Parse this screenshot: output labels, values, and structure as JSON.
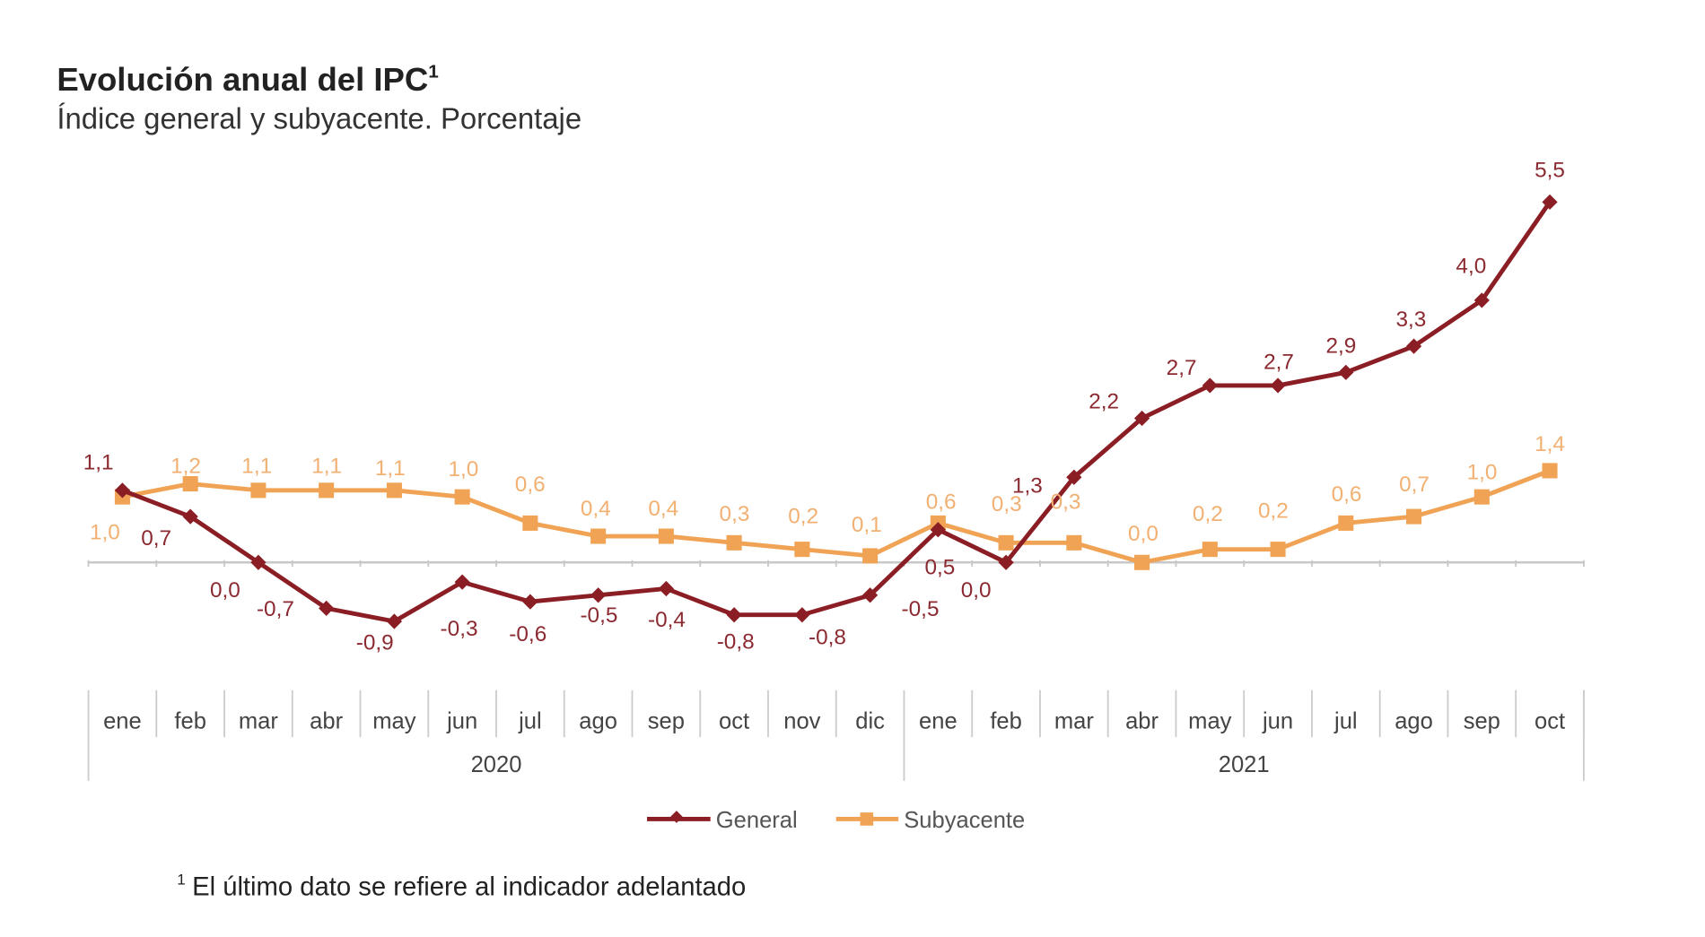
{
  "chart_data": {
    "type": "line",
    "title": "Evolución anual del IPC",
    "title_superscript": "1",
    "subtitle": "Índice general y subyacente. Porcentaje",
    "footnote_mark": "1",
    "footnote": "El último dato se refiere al indicador adelantado",
    "years": [
      {
        "label": "2020",
        "months": 12
      },
      {
        "label": "2021",
        "months": 10
      }
    ],
    "categories": [
      "ene",
      "feb",
      "mar",
      "abr",
      "may",
      "jun",
      "jul",
      "ago",
      "sep",
      "oct",
      "nov",
      "dic",
      "ene",
      "feb",
      "mar",
      "abr",
      "may",
      "jun",
      "jul",
      "ago",
      "sep",
      "oct"
    ],
    "series": [
      {
        "name": "General",
        "color": "#8b1e24",
        "marker": "diamond",
        "values": [
          1.1,
          0.7,
          0.0,
          -0.7,
          -0.9,
          -0.3,
          -0.6,
          -0.5,
          -0.4,
          -0.8,
          -0.8,
          -0.5,
          0.5,
          0.0,
          1.3,
          2.2,
          2.7,
          2.7,
          2.9,
          3.3,
          4.0,
          5.5
        ],
        "labels": [
          "1,1",
          "0,7",
          "0,0",
          "-0,7",
          "-0,9",
          "-0,3",
          "-0,6",
          "-0,5",
          "-0,4",
          "-0,8",
          "-0,8",
          "-0,5",
          "0,5",
          "0,0",
          "1,3",
          "2,2",
          "2,7",
          "2,7",
          "2,9",
          "3,3",
          "4,0",
          "5,5"
        ]
      },
      {
        "name": "Subyacente",
        "color": "#f0a354",
        "marker": "square",
        "values": [
          1.0,
          1.2,
          1.1,
          1.1,
          1.1,
          1.0,
          0.6,
          0.4,
          0.4,
          0.3,
          0.2,
          0.1,
          0.6,
          0.3,
          0.3,
          0.0,
          0.2,
          0.2,
          0.6,
          0.7,
          1.0,
          1.4
        ],
        "labels": [
          "1,0",
          "1,2",
          "1,1",
          "1,1",
          "1,1",
          "1,0",
          "0,6",
          "0,4",
          "0,4",
          "0,3",
          "0,2",
          "0,1",
          "0,6",
          "0,3",
          "0,3",
          "0,0",
          "0,2",
          "0,2",
          "0,6",
          "0,7",
          "1,0",
          "1,4"
        ]
      }
    ],
    "xlabel": "",
    "ylabel": "",
    "ylim": [
      -1.5,
      6
    ],
    "grid": false,
    "legend": "bottom-center"
  }
}
